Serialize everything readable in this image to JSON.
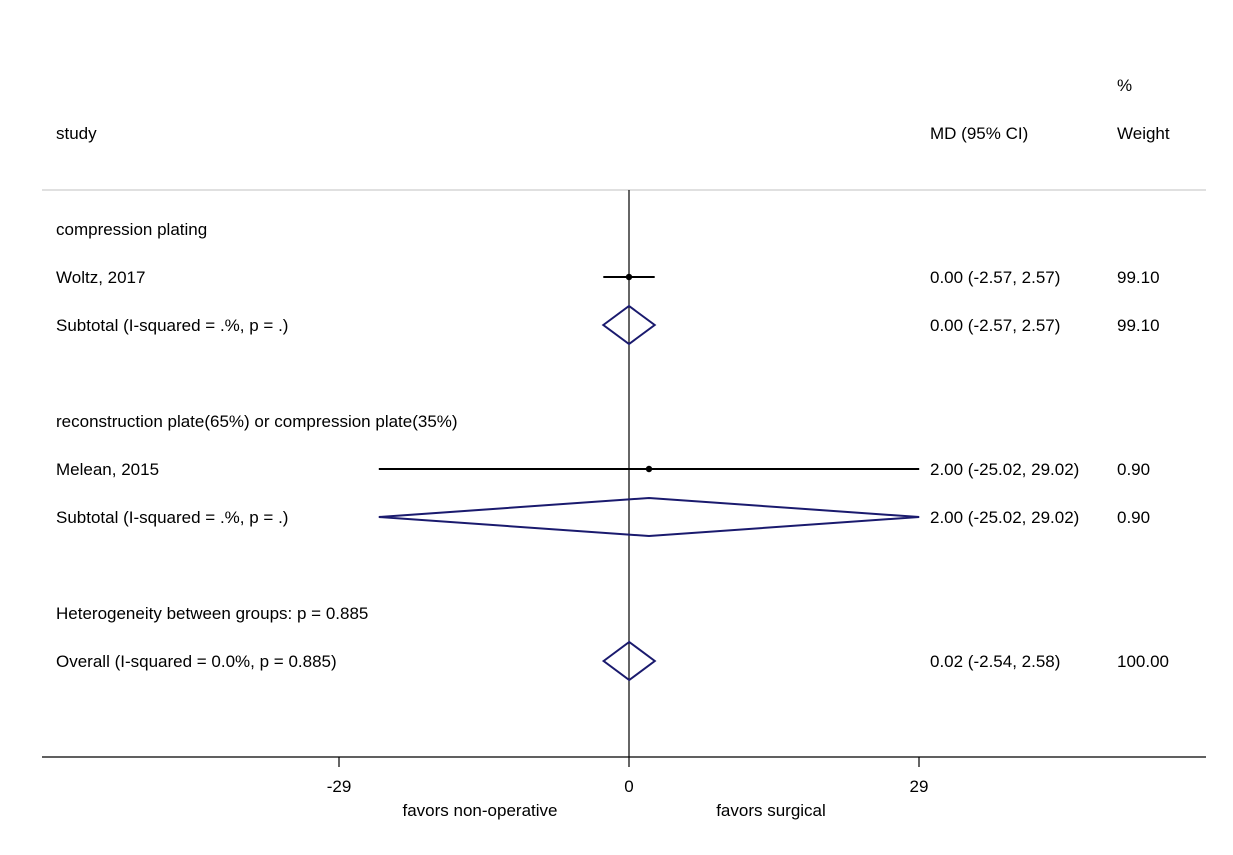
{
  "chart_data": {
    "type": "forest",
    "headers": {
      "study": "study",
      "effect": "MD (95% CI)",
      "weight_top": "%",
      "weight": "Weight"
    },
    "rows": [
      {
        "kind": "group",
        "label": "compression plating"
      },
      {
        "kind": "study",
        "label": "Woltz, 2017",
        "estimate": 0.0,
        "lower": -2.57,
        "upper": 2.57,
        "ci_text": "0.00 (-2.57, 2.57)",
        "weight": "99.10"
      },
      {
        "kind": "subtotal",
        "label": "Subtotal  (I-squared = .%, p = .)",
        "estimate": 0.0,
        "lower": -2.57,
        "upper": 2.57,
        "ci_text": "0.00 (-2.57, 2.57)",
        "weight": "99.10"
      },
      {
        "kind": "blank"
      },
      {
        "kind": "group",
        "label": "reconstruction plate(65%) or compression plate(35%)"
      },
      {
        "kind": "study",
        "label": "Melean, 2015",
        "estimate": 2.0,
        "lower": -25.02,
        "upper": 29.02,
        "ci_text": "2.00 (-25.02, 29.02)",
        "weight": "0.90"
      },
      {
        "kind": "subtotal",
        "label": "Subtotal  (I-squared = .%, p = .)",
        "estimate": 2.0,
        "lower": -25.02,
        "upper": 29.02,
        "ci_text": "2.00 (-25.02, 29.02)",
        "weight": "0.90"
      },
      {
        "kind": "blank"
      },
      {
        "kind": "group",
        "label": "Heterogeneity between groups: p = 0.885"
      },
      {
        "kind": "overall",
        "label": "Overall  (I-squared = 0.0%, p = 0.885)",
        "estimate": 0.02,
        "lower": -2.54,
        "upper": 2.58,
        "ci_text": "0.02 (-2.54, 2.58)",
        "weight": "100.00"
      }
    ],
    "x_ticks": [
      -29,
      0,
      29
    ],
    "x_tick_labels": [
      "-29",
      "0",
      "29"
    ],
    "xlim": [
      -29,
      29
    ],
    "null_line": 0,
    "favors_left": "favors non-operative",
    "favors_right": "favors surgical",
    "colors": {
      "ci_line": "#000000",
      "diamond": "#1a1a6e",
      "separator": "#c0c0c0",
      "axis": "#000000"
    }
  }
}
